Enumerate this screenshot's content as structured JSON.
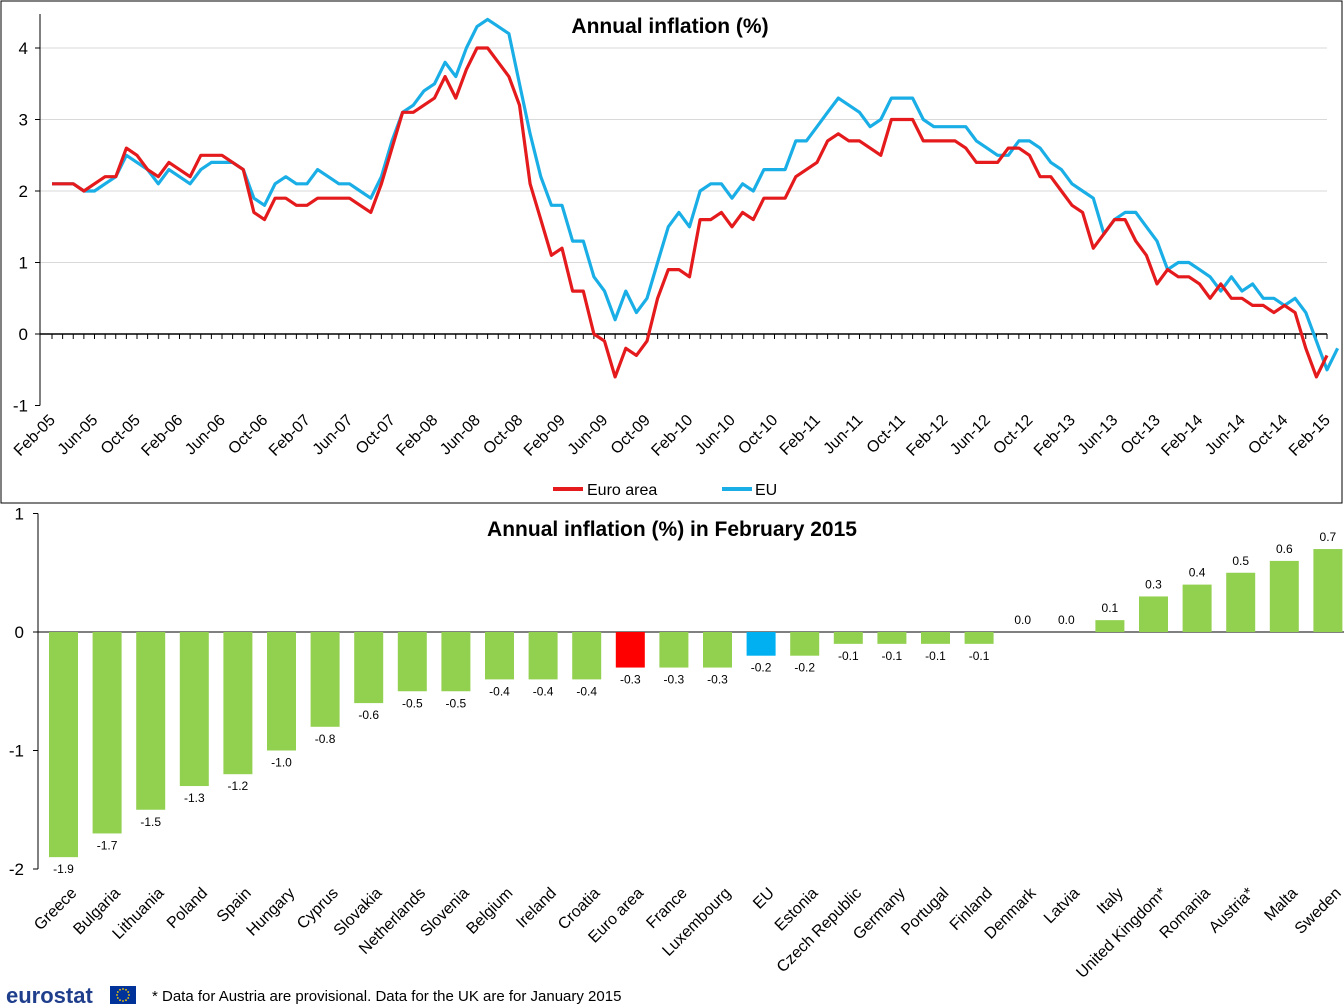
{
  "colors": {
    "euro_area": "#e41a1c",
    "eu": "#1aaee6",
    "bar_default": "#92d050",
    "bar_euro_area": "#ff0000",
    "bar_eu": "#00b0f0",
    "flag_blue": "#003399",
    "flag_star": "#ffcc00"
  },
  "chart_data": [
    {
      "type": "line",
      "title": "Annual inflation (%)",
      "ylim": [
        -1,
        4.4
      ],
      "yticks": [
        -1,
        0,
        1,
        2,
        3,
        4
      ],
      "x_start": "Feb-05",
      "x_tick_labels": [
        "Feb-05",
        "Jun-05",
        "Oct-05",
        "Feb-06",
        "Jun-06",
        "Oct-06",
        "Feb-07",
        "Jun-07",
        "Oct-07",
        "Feb-08",
        "Jun-08",
        "Oct-08",
        "Feb-09",
        "Jun-09",
        "Oct-09",
        "Feb-10",
        "Jun-10",
        "Oct-10",
        "Feb-11",
        "Jun-11",
        "Oct-11",
        "Feb-12",
        "Jun-12",
        "Oct-12",
        "Feb-13",
        "Jun-13",
        "Oct-13",
        "Feb-14",
        "Jun-14",
        "Oct-14",
        "Feb-15"
      ],
      "x_tick_every_months": 4,
      "legend": "bottom",
      "series": [
        {
          "name": "Euro area",
          "values": [
            2.1,
            2.1,
            2.1,
            2.0,
            2.1,
            2.2,
            2.2,
            2.6,
            2.5,
            2.3,
            2.2,
            2.4,
            2.3,
            2.2,
            2.5,
            2.5,
            2.5,
            2.4,
            2.3,
            1.7,
            1.6,
            1.9,
            1.9,
            1.8,
            1.8,
            1.9,
            1.9,
            1.9,
            1.9,
            1.8,
            1.7,
            2.1,
            2.6,
            3.1,
            3.1,
            3.2,
            3.3,
            3.6,
            3.3,
            3.7,
            4.0,
            4.0,
            3.8,
            3.6,
            3.2,
            2.1,
            1.6,
            1.1,
            1.2,
            0.6,
            0.6,
            0.0,
            -0.1,
            -0.6,
            -0.2,
            -0.3,
            -0.1,
            0.5,
            0.9,
            0.9,
            0.8,
            1.6,
            1.6,
            1.7,
            1.5,
            1.7,
            1.6,
            1.9,
            1.9,
            1.9,
            2.2,
            2.3,
            2.4,
            2.7,
            2.8,
            2.7,
            2.7,
            2.6,
            2.5,
            3.0,
            3.0,
            3.0,
            2.7,
            2.7,
            2.7,
            2.7,
            2.6,
            2.4,
            2.4,
            2.4,
            2.6,
            2.6,
            2.5,
            2.2,
            2.2,
            2.0,
            1.8,
            1.7,
            1.2,
            1.4,
            1.6,
            1.6,
            1.3,
            1.1,
            0.7,
            0.9,
            0.8,
            0.8,
            0.7,
            0.5,
            0.7,
            0.5,
            0.5,
            0.4,
            0.4,
            0.3,
            0.4,
            0.3,
            -0.2,
            -0.6,
            -0.3
          ]
        },
        {
          "name": "EU",
          "values": [
            2.1,
            2.1,
            2.1,
            2.0,
            2.0,
            2.1,
            2.2,
            2.5,
            2.4,
            2.3,
            2.1,
            2.3,
            2.2,
            2.1,
            2.3,
            2.4,
            2.4,
            2.4,
            2.3,
            1.9,
            1.8,
            2.1,
            2.2,
            2.1,
            2.1,
            2.3,
            2.2,
            2.1,
            2.1,
            2.0,
            1.9,
            2.2,
            2.7,
            3.1,
            3.2,
            3.4,
            3.5,
            3.8,
            3.6,
            4.0,
            4.3,
            4.4,
            4.3,
            4.2,
            3.5,
            2.8,
            2.2,
            1.8,
            1.8,
            1.3,
            1.3,
            0.8,
            0.6,
            0.2,
            0.6,
            0.3,
            0.5,
            1.0,
            1.5,
            1.7,
            1.5,
            2.0,
            2.1,
            2.1,
            1.9,
            2.1,
            2.0,
            2.3,
            2.3,
            2.3,
            2.7,
            2.7,
            2.9,
            3.1,
            3.3,
            3.2,
            3.1,
            2.9,
            3.0,
            3.3,
            3.3,
            3.3,
            3.0,
            2.9,
            2.9,
            2.9,
            2.9,
            2.7,
            2.6,
            2.5,
            2.5,
            2.7,
            2.7,
            2.6,
            2.4,
            2.3,
            2.1,
            2.0,
            1.9,
            1.4,
            1.6,
            1.7,
            1.7,
            1.5,
            1.3,
            0.9,
            1.0,
            1.0,
            0.9,
            0.8,
            0.6,
            0.8,
            0.6,
            0.7,
            0.5,
            0.5,
            0.4,
            0.5,
            0.3,
            -0.1,
            -0.5,
            -0.2
          ]
        }
      ]
    },
    {
      "type": "bar",
      "title": "Annual inflation (%)  in February 2015",
      "ylim": [
        -2,
        1
      ],
      "yticks": [
        -2,
        -1,
        0,
        1
      ],
      "categories": [
        "Greece",
        "Bulgaria",
        "Lithuania",
        "Poland",
        "Spain",
        "Hungary",
        "Cyprus",
        "Slovakia",
        "Netherlands",
        "Slovenia",
        "Belgium",
        "Ireland",
        "Croatia",
        "Euro area",
        "France",
        "Luxembourg",
        "EU",
        "Estonia",
        "Czech Republic",
        "Germany",
        "Portugal",
        "Finland",
        "Denmark",
        "Latvia",
        "Italy",
        "United Kingdom*",
        "Romania",
        "Austria*",
        "Malta",
        "Sweden"
      ],
      "values": [
        -1.9,
        -1.7,
        -1.5,
        -1.3,
        -1.2,
        -1.0,
        -0.8,
        -0.6,
        -0.5,
        -0.5,
        -0.4,
        -0.4,
        -0.4,
        -0.3,
        -0.3,
        -0.3,
        -0.2,
        -0.2,
        -0.1,
        -0.1,
        -0.1,
        -0.1,
        0.0,
        0.0,
        0.1,
        0.3,
        0.4,
        0.5,
        0.6,
        0.7
      ],
      "highlight": {
        "Euro area": "bar_euro_area",
        "EU": "bar_eu"
      }
    }
  ],
  "footer": {
    "logo_text": "eurostat",
    "note": "* Data for Austria are provisional. Data for the UK are for January 2015"
  }
}
